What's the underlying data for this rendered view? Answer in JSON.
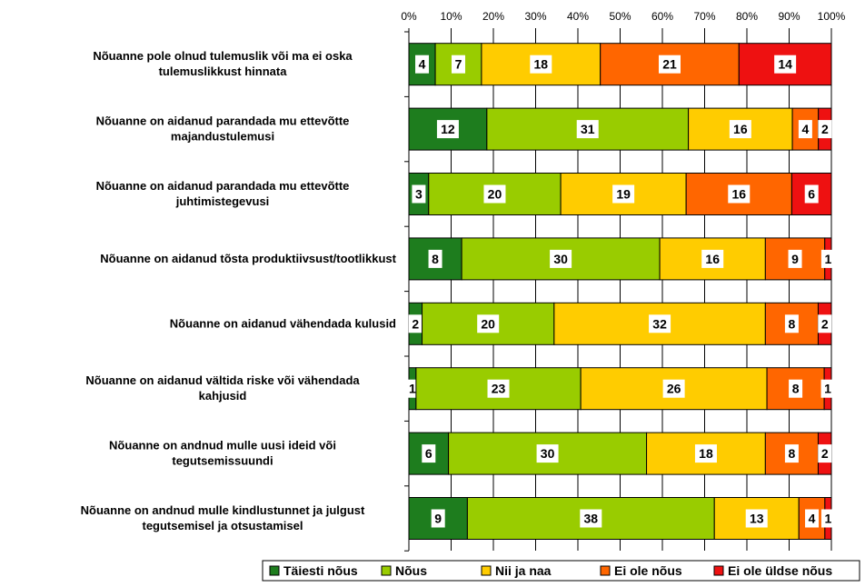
{
  "chart_data": {
    "type": "bar",
    "orientation": "horizontal",
    "stacked": "percent",
    "xlim": [
      0,
      100
    ],
    "x_ticks": [
      "0%",
      "10%",
      "20%",
      "30%",
      "40%",
      "50%",
      "60%",
      "70%",
      "80%",
      "90%",
      "100%"
    ],
    "grid": true,
    "legend_position": "bottom",
    "categories": [
      [
        "Nõuanne pole olnud tulemuslik või ma ei oska",
        "tulemuslikkust hinnata"
      ],
      [
        "Nõuanne on aidanud parandada mu ettevõtte",
        "majandustulemusi"
      ],
      [
        "Nõuanne on aidanud parandada mu ettevõtte",
        "juhtimistegevusi"
      ],
      [
        "Nõuanne on aidanud tõsta produktiivsust/tootlikkust"
      ],
      [
        "Nõuanne on aidanud vähendada kulusid"
      ],
      [
        "Nõuanne on aidanud vältida riske või vähendada",
        "kahjusid"
      ],
      [
        "Nõuanne on andnud mulle uusi ideid või",
        "tegutsemissuundi"
      ],
      [
        "Nõuanne on andnud mulle kindlustunnet ja julgust",
        "tegutsemisel ja otsustamisel"
      ]
    ],
    "series": [
      {
        "name": "Täiesti nõus",
        "color": "#1e7d1e",
        "values": [
          4,
          12,
          3,
          8,
          2,
          1,
          6,
          9
        ]
      },
      {
        "name": "Nõus",
        "color": "#99cc00",
        "values": [
          7,
          31,
          20,
          30,
          20,
          23,
          30,
          38
        ]
      },
      {
        "name": "Nii ja naa",
        "color": "#ffcc00",
        "values": [
          18,
          16,
          19,
          16,
          32,
          26,
          18,
          13
        ]
      },
      {
        "name": "Ei ole nõus",
        "color": "#ff6600",
        "values": [
          21,
          4,
          16,
          9,
          8,
          8,
          8,
          4
        ]
      },
      {
        "name": "Ei ole üldse nõus",
        "color": "#ee1111",
        "values": [
          14,
          2,
          6,
          1,
          2,
          1,
          2,
          1
        ]
      }
    ]
  }
}
